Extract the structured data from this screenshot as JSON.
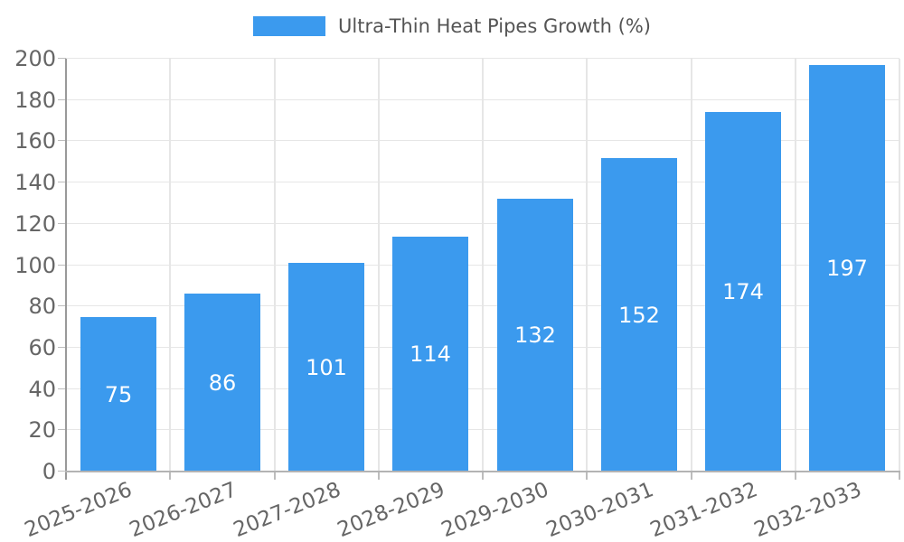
{
  "chart_data": {
    "type": "bar",
    "title": "",
    "legend": "Ultra-Thin Heat Pipes Growth (%)",
    "legend_position": "top-center",
    "categories": [
      "2025-2026",
      "2026-2027",
      "2027-2028",
      "2028-2029",
      "2029-2030",
      "2030-2031",
      "2031-2032",
      "2032-2033"
    ],
    "values": [
      75,
      86,
      101,
      114,
      132,
      152,
      174,
      197
    ],
    "xlabel": "",
    "ylabel": "",
    "ylim": [
      0,
      200
    ],
    "yticks": [
      0,
      20,
      40,
      60,
      80,
      100,
      120,
      140,
      160,
      180,
      200
    ],
    "grid": true,
    "x_label_rotation_deg": -22,
    "colors": {
      "bar": "#3B9AEE",
      "value_label": "#FFFFFF",
      "axis_text": "#666666",
      "legend_text": "#545454",
      "grid_line": "#E6E6E6",
      "y_axis_line": "#999999",
      "x_axis_line": "#B3B3B3",
      "tick": "#BDBDBD",
      "background": "#FFFFFF"
    }
  }
}
